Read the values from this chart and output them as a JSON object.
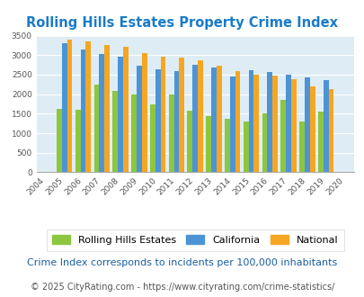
{
  "title": "Rolling Hills Estates Property Crime Index",
  "years": [
    2004,
    2005,
    2006,
    2007,
    2008,
    2009,
    2010,
    2011,
    2012,
    2013,
    2014,
    2015,
    2016,
    2017,
    2018,
    2019,
    2020
  ],
  "rhe": [
    null,
    1620,
    1600,
    2250,
    2080,
    2000,
    1750,
    2000,
    1580,
    1450,
    1380,
    1310,
    1500,
    1850,
    1310,
    1550,
    null
  ],
  "california": [
    null,
    3310,
    3150,
    3040,
    2960,
    2730,
    2640,
    2600,
    2760,
    2680,
    2460,
    2620,
    2560,
    2500,
    2420,
    2370,
    null
  ],
  "national": [
    null,
    3400,
    3350,
    3260,
    3210,
    3050,
    2960,
    2940,
    2870,
    2720,
    2600,
    2490,
    2470,
    2390,
    2210,
    2130,
    null
  ],
  "bar_colors": {
    "rhe": "#8dc63f",
    "california": "#4d94d5",
    "national": "#f5a623"
  },
  "ylim": [
    0,
    3500
  ],
  "yticks": [
    0,
    500,
    1000,
    1500,
    2000,
    2500,
    3000,
    3500
  ],
  "bg_color": "#deedf5",
  "grid_color": "#ffffff",
  "title_color": "#1a7cc9",
  "legend_labels": [
    "Rolling Hills Estates",
    "California",
    "National"
  ],
  "footnote1": "Crime Index corresponds to incidents per 100,000 inhabitants",
  "footnote2": "© 2025 CityRating.com - https://www.cityrating.com/crime-statistics/",
  "footnote_color": "#555555",
  "footnote1_color": "#1a5fa0",
  "title_fontsize": 10.5,
  "tick_fontsize": 6.5,
  "legend_fontsize": 8,
  "footnote1_fontsize": 8,
  "footnote2_fontsize": 7
}
